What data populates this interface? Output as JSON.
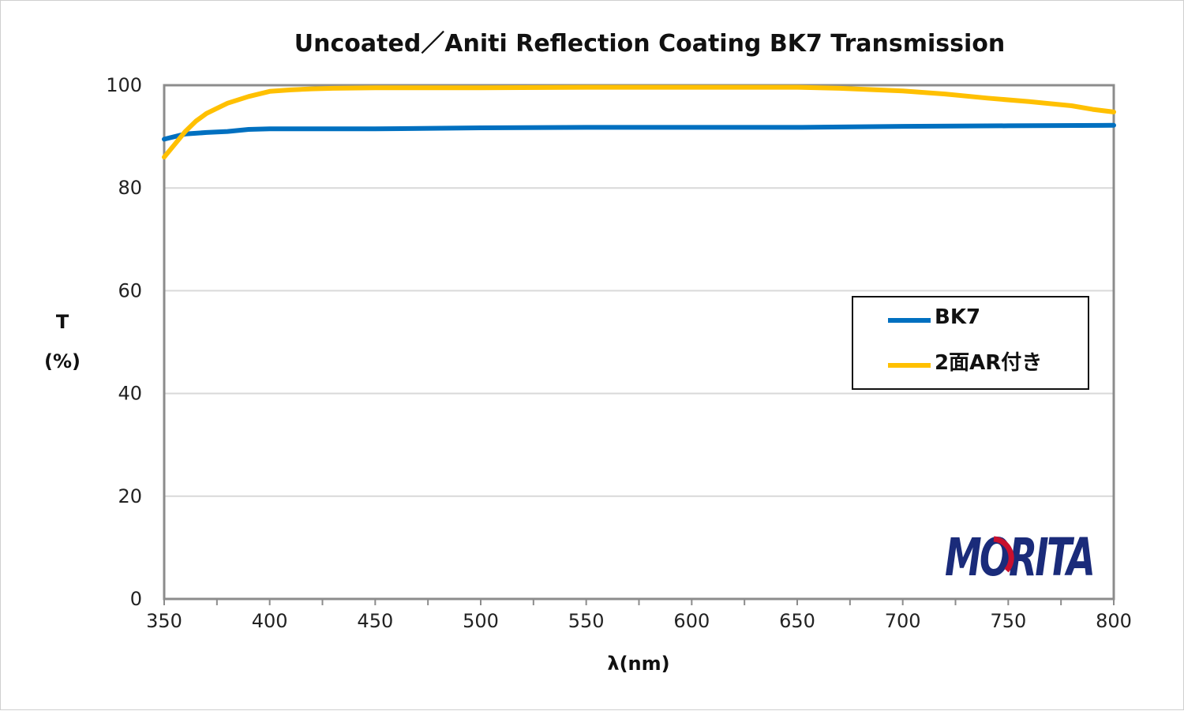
{
  "chart_data": {
    "type": "line",
    "title": "Uncoated／Aniti Reflection Coating BK7 Transmission",
    "xlabel": "λ(nm)",
    "ylabel_line1": "T",
    "ylabel_line2": "(%)",
    "xlim": [
      350,
      800
    ],
    "ylim": [
      0,
      100
    ],
    "xticks": [
      350,
      400,
      450,
      500,
      550,
      600,
      650,
      700,
      750,
      800
    ],
    "yticks": [
      0,
      20,
      40,
      60,
      80,
      100
    ],
    "grid": true,
    "legend_position": "right",
    "series": [
      {
        "name": "BK7",
        "color": "#0070c0",
        "x": [
          350,
          360,
          370,
          380,
          390,
          400,
          450,
          500,
          550,
          600,
          650,
          700,
          750,
          800
        ],
        "y": [
          89.5,
          90.5,
          90.8,
          91.0,
          91.4,
          91.5,
          91.5,
          91.7,
          91.8,
          91.8,
          91.8,
          92.0,
          92.1,
          92.2
        ]
      },
      {
        "name": "2面AR付き",
        "color": "#ffc000",
        "x": [
          350,
          355,
          360,
          365,
          370,
          375,
          380,
          390,
          400,
          410,
          420,
          430,
          450,
          500,
          550,
          600,
          650,
          670,
          700,
          720,
          740,
          760,
          780,
          790,
          800
        ],
        "y": [
          86.0,
          88.5,
          91.0,
          93.0,
          94.5,
          95.5,
          96.5,
          97.8,
          98.8,
          99.1,
          99.3,
          99.4,
          99.5,
          99.5,
          99.6,
          99.6,
          99.6,
          99.4,
          98.9,
          98.3,
          97.5,
          96.8,
          96.0,
          95.3,
          94.8
        ]
      }
    ]
  },
  "logo": {
    "text": "MORITA",
    "color": "#1a2b7a",
    "accent_color": "#c8102e"
  }
}
